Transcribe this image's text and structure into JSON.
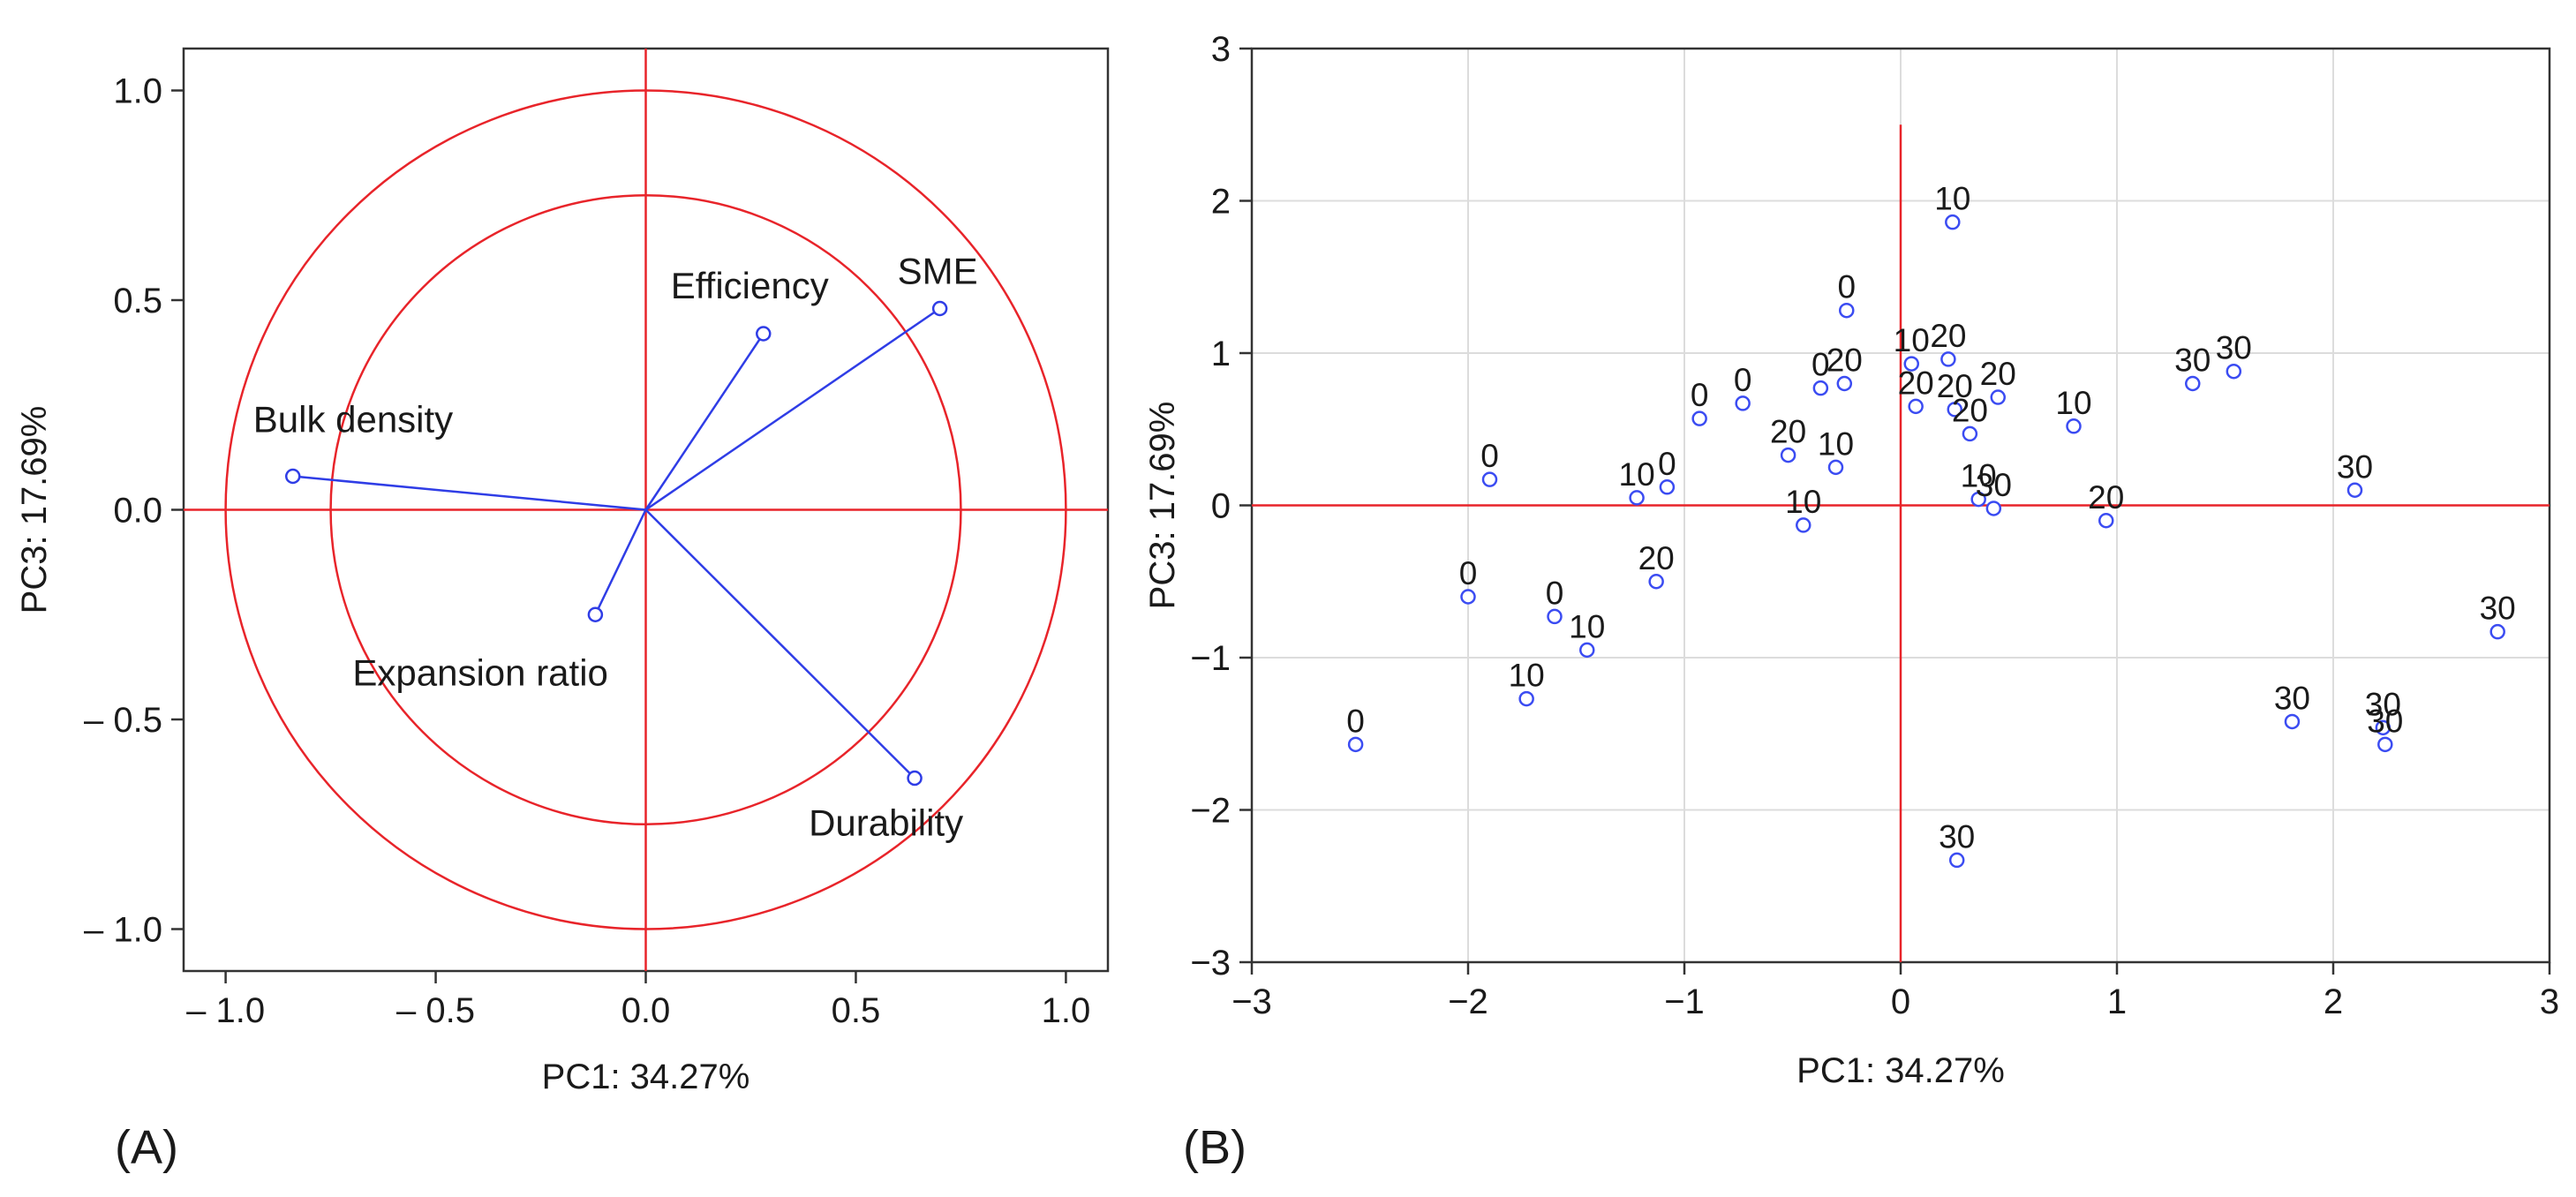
{
  "colors": {
    "axis_line": "#e8242a",
    "vector": "#2f3de6",
    "point": "#3b4cf2",
    "grid": "#dcdcdc",
    "frame": "#333333"
  },
  "chart_data": [
    {
      "type": "scatter",
      "panel_label": "(A)",
      "xlabel": "PC1: 34.27%",
      "ylabel": "PC3: 17.69%",
      "xlim": [
        -1.1,
        1.1
      ],
      "ylim": [
        -1.1,
        1.1
      ],
      "xticks": [
        -1.0,
        -0.5,
        0.0,
        0.5,
        1.0
      ],
      "yticks": [
        -1.0,
        -0.5,
        0.0,
        0.5,
        1.0
      ],
      "xtick_labels": [
        "– 1.0",
        "– 0.5",
        "0.0",
        "0.5",
        "1.0"
      ],
      "ytick_labels": [
        "– 1.0",
        "– 0.5",
        "0.0",
        "0.5",
        "1.0"
      ],
      "grid": false,
      "circles": [
        1.0,
        0.75
      ],
      "variables": [
        {
          "name": "Bulk density",
          "x": -0.84,
          "y": 0.08
        },
        {
          "name": "Efficiency",
          "x": 0.28,
          "y": 0.42
        },
        {
          "name": "SME",
          "x": 0.7,
          "y": 0.48
        },
        {
          "name": "Expansion ratio",
          "x": -0.12,
          "y": -0.25
        },
        {
          "name": "Durability",
          "x": 0.64,
          "y": -0.64
        }
      ]
    },
    {
      "type": "scatter",
      "panel_label": "(B)",
      "xlabel": "PC1: 34.27%",
      "ylabel": "PC3: 17.69%",
      "xlim": [
        -3,
        3
      ],
      "ylim": [
        -3,
        3
      ],
      "xticks": [
        -3,
        -2,
        -1,
        0,
        1,
        2,
        3
      ],
      "yticks": [
        -3,
        -2,
        -1,
        0,
        1,
        2,
        3
      ],
      "xtick_labels": [
        "−3",
        "−2",
        "−1",
        "0",
        "1",
        "2",
        "3"
      ],
      "ytick_labels": [
        "−3",
        "−2",
        "−1",
        "0",
        "1",
        "2",
        "3"
      ],
      "grid": true,
      "points": [
        {
          "label": "0",
          "x": -2.52,
          "y": -1.57
        },
        {
          "label": "0",
          "x": -2.0,
          "y": -0.6
        },
        {
          "label": "0",
          "x": -1.9,
          "y": 0.17
        },
        {
          "label": "0",
          "x": -1.6,
          "y": -0.73
        },
        {
          "label": "0",
          "x": -0.93,
          "y": 0.57
        },
        {
          "label": "0",
          "x": -0.73,
          "y": 0.67
        },
        {
          "label": "0",
          "x": -1.08,
          "y": 0.12
        },
        {
          "label": "0",
          "x": -0.37,
          "y": 0.77
        },
        {
          "label": "0",
          "x": -0.25,
          "y": 1.28
        },
        {
          "label": "10",
          "x": -1.73,
          "y": -1.27
        },
        {
          "label": "10",
          "x": -1.45,
          "y": -0.95
        },
        {
          "label": "10",
          "x": -1.22,
          "y": 0.05
        },
        {
          "label": "10",
          "x": -0.45,
          "y": -0.13
        },
        {
          "label": "10",
          "x": -0.3,
          "y": 0.25
        },
        {
          "label": "10",
          "x": 0.24,
          "y": 1.86
        },
        {
          "label": "10",
          "x": 0.05,
          "y": 0.93
        },
        {
          "label": "10",
          "x": 0.36,
          "y": 0.04
        },
        {
          "label": "10",
          "x": 0.8,
          "y": 0.52
        },
        {
          "label": "20",
          "x": -1.13,
          "y": -0.5
        },
        {
          "label": "20",
          "x": -0.52,
          "y": 0.33
        },
        {
          "label": "20",
          "x": -0.26,
          "y": 0.8
        },
        {
          "label": "20",
          "x": 0.22,
          "y": 0.96
        },
        {
          "label": "20",
          "x": 0.07,
          "y": 0.65
        },
        {
          "label": "20",
          "x": 0.25,
          "y": 0.63
        },
        {
          "label": "20",
          "x": 0.32,
          "y": 0.47
        },
        {
          "label": "20",
          "x": 0.45,
          "y": 0.71
        },
        {
          "label": "20",
          "x": 0.95,
          "y": -0.1
        },
        {
          "label": "30",
          "x": 0.43,
          "y": -0.02
        },
        {
          "label": "30",
          "x": 1.35,
          "y": 0.8
        },
        {
          "label": "30",
          "x": 1.54,
          "y": 0.88
        },
        {
          "label": "30",
          "x": 2.1,
          "y": 0.1
        },
        {
          "label": "30",
          "x": 1.81,
          "y": -1.42
        },
        {
          "label": "30",
          "x": 2.23,
          "y": -1.46
        },
        {
          "label": "30",
          "x": 2.24,
          "y": -1.57
        },
        {
          "label": "30",
          "x": 2.76,
          "y": -0.83
        },
        {
          "label": "30",
          "x": 0.26,
          "y": -2.33
        }
      ]
    }
  ]
}
